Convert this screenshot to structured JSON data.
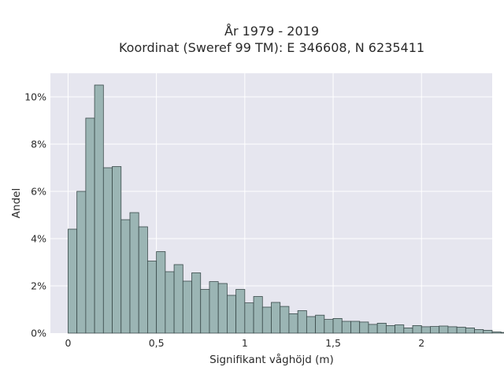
{
  "chart_data": {
    "type": "bar",
    "title_line1": "År 1979 - 2019",
    "title_line2": "Koordinat (Sweref 99 TM): E 346608, N 6235411",
    "xlabel": "Signifikant våghöjd (m)",
    "ylabel": "Andel",
    "x_ticks": [
      {
        "value": 0,
        "label": "0"
      },
      {
        "value": 0.5,
        "label": "0,5"
      },
      {
        "value": 1,
        "label": "1"
      },
      {
        "value": 1.5,
        "label": "1,5"
      },
      {
        "value": 2,
        "label": "2"
      }
    ],
    "y_ticks": [
      {
        "value": 0,
        "label": "0%"
      },
      {
        "value": 2,
        "label": "2%"
      },
      {
        "value": 4,
        "label": "4%"
      },
      {
        "value": 6,
        "label": "6%"
      },
      {
        "value": 8,
        "label": "8%"
      },
      {
        "value": 10,
        "label": "10%"
      }
    ],
    "xlim": [
      -0.1,
      2.4
    ],
    "ylim": [
      0,
      11
    ],
    "bin_start": 0.0,
    "bin_width": 0.05,
    "values": [
      4.4,
      6.0,
      9.1,
      10.5,
      7.0,
      7.05,
      4.8,
      5.1,
      4.5,
      3.05,
      3.45,
      2.6,
      2.9,
      2.2,
      2.55,
      1.85,
      2.18,
      2.1,
      1.6,
      1.85,
      1.28,
      1.55,
      1.1,
      1.3,
      1.13,
      0.82,
      0.95,
      0.7,
      0.76,
      0.58,
      0.62,
      0.5,
      0.5,
      0.47,
      0.37,
      0.42,
      0.32,
      0.35,
      0.22,
      0.32,
      0.27,
      0.28,
      0.3,
      0.27,
      0.25,
      0.22,
      0.15,
      0.12,
      0.05,
      0.03
    ],
    "grid": true
  }
}
